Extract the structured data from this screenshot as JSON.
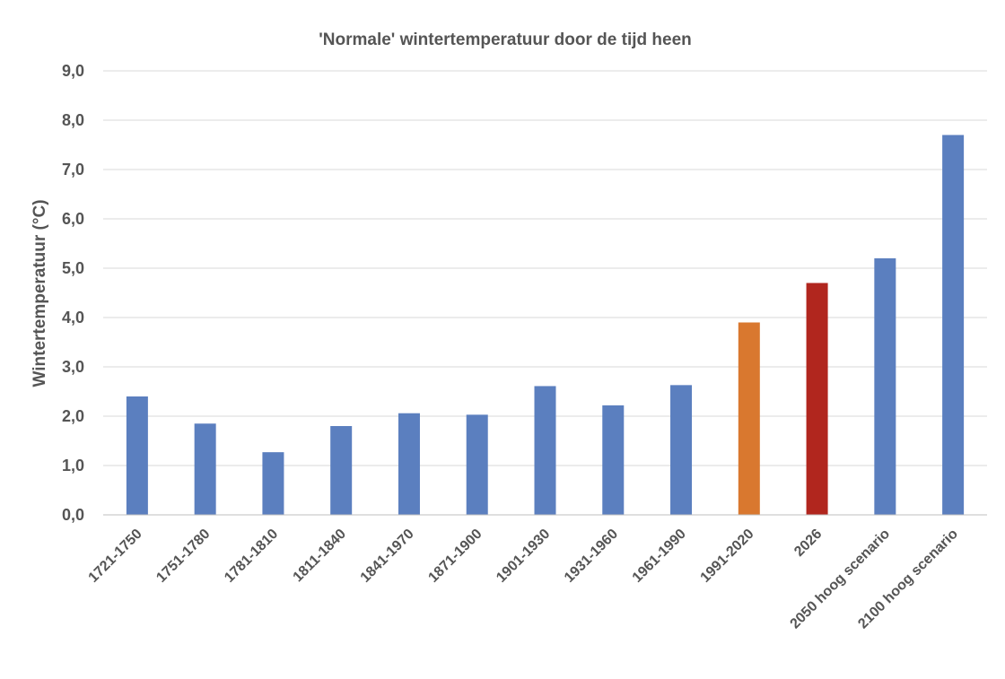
{
  "chart_data": {
    "type": "bar",
    "title": "'Normale' wintertemperatuur door de tijd heen",
    "ylabel": "Wintertemperatuur (°C)",
    "xlabel": "",
    "ylim": [
      0,
      9
    ],
    "yticks": [
      "0,0",
      "1,0",
      "2,0",
      "3,0",
      "4,0",
      "5,0",
      "6,0",
      "7,0",
      "8,0",
      "9,0"
    ],
    "grid": true,
    "legend": "none",
    "categories": [
      "1721-1750",
      "1751-1780",
      "1781-1810",
      "1811-1840",
      "1841-1970",
      "1871-1900",
      "1901-1930",
      "1931-1960",
      "1961-1990",
      "1991-2020",
      "2026",
      "2050 hoog scenario",
      "2100 hoog scenario"
    ],
    "values": [
      2.4,
      1.85,
      1.27,
      1.8,
      2.06,
      2.03,
      2.61,
      2.22,
      2.63,
      3.9,
      4.7,
      5.2,
      7.7
    ],
    "colors": [
      "#5b7fbf",
      "#5b7fbf",
      "#5b7fbf",
      "#5b7fbf",
      "#5b7fbf",
      "#5b7fbf",
      "#5b7fbf",
      "#5b7fbf",
      "#5b7fbf",
      "#d9782f",
      "#b1261e",
      "#5b7fbf",
      "#5b7fbf"
    ]
  }
}
